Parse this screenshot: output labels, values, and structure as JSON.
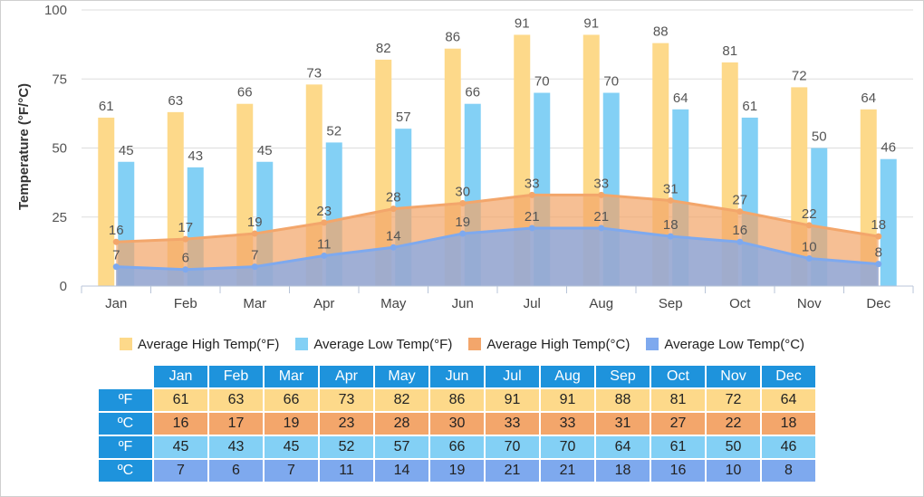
{
  "chart_data": {
    "type": "bar",
    "categories": [
      "Jan",
      "Feb",
      "Mar",
      "Apr",
      "May",
      "Jun",
      "Jul",
      "Aug",
      "Sep",
      "Oct",
      "Nov",
      "Dec"
    ],
    "ylabel": "Temperature (°F/°C)",
    "ylim": [
      0,
      100
    ],
    "yticks": [
      0,
      25,
      50,
      75,
      100
    ],
    "grid": true,
    "legend_position": "bottom",
    "series": [
      {
        "name": "Average High Temp(°F)",
        "kind": "bar",
        "color": "#fdd98a",
        "values": [
          61,
          63,
          66,
          73,
          82,
          86,
          91,
          91,
          88,
          81,
          72,
          64
        ]
      },
      {
        "name": "Average Low Temp(°F)",
        "kind": "bar",
        "color": "#83d0f5",
        "values": [
          45,
          43,
          45,
          52,
          57,
          66,
          70,
          70,
          64,
          61,
          50,
          46
        ]
      },
      {
        "name": "Average High Temp(°C)",
        "kind": "area",
        "color": "#f3a66b",
        "values": [
          16,
          17,
          19,
          23,
          28,
          30,
          33,
          33,
          31,
          27,
          22,
          18
        ]
      },
      {
        "name": "Average Low Temp(°C)",
        "kind": "area",
        "color": "#7ea9ee",
        "values": [
          7,
          6,
          7,
          11,
          14,
          19,
          21,
          21,
          18,
          16,
          10,
          8
        ]
      }
    ]
  },
  "table": {
    "rows": [
      {
        "unit": "ºF",
        "bg": "#fdd98a",
        "label_bg": "#1e93dc",
        "values": [
          61,
          63,
          66,
          73,
          82,
          86,
          91,
          91,
          88,
          81,
          72,
          64
        ]
      },
      {
        "unit": "ºC",
        "bg": "#f3a66b",
        "label_bg": "#1e93dc",
        "values": [
          16,
          17,
          19,
          23,
          28,
          30,
          33,
          33,
          31,
          27,
          22,
          18
        ]
      },
      {
        "unit": "ºF",
        "bg": "#83d0f5",
        "label_bg": "#1e93dc",
        "values": [
          45,
          43,
          45,
          52,
          57,
          66,
          70,
          70,
          64,
          61,
          50,
          46
        ]
      },
      {
        "unit": "ºC",
        "bg": "#7ea9ee",
        "label_bg": "#1e93dc",
        "values": [
          7,
          6,
          7,
          11,
          14,
          19,
          21,
          21,
          18,
          16,
          10,
          8
        ]
      }
    ]
  }
}
